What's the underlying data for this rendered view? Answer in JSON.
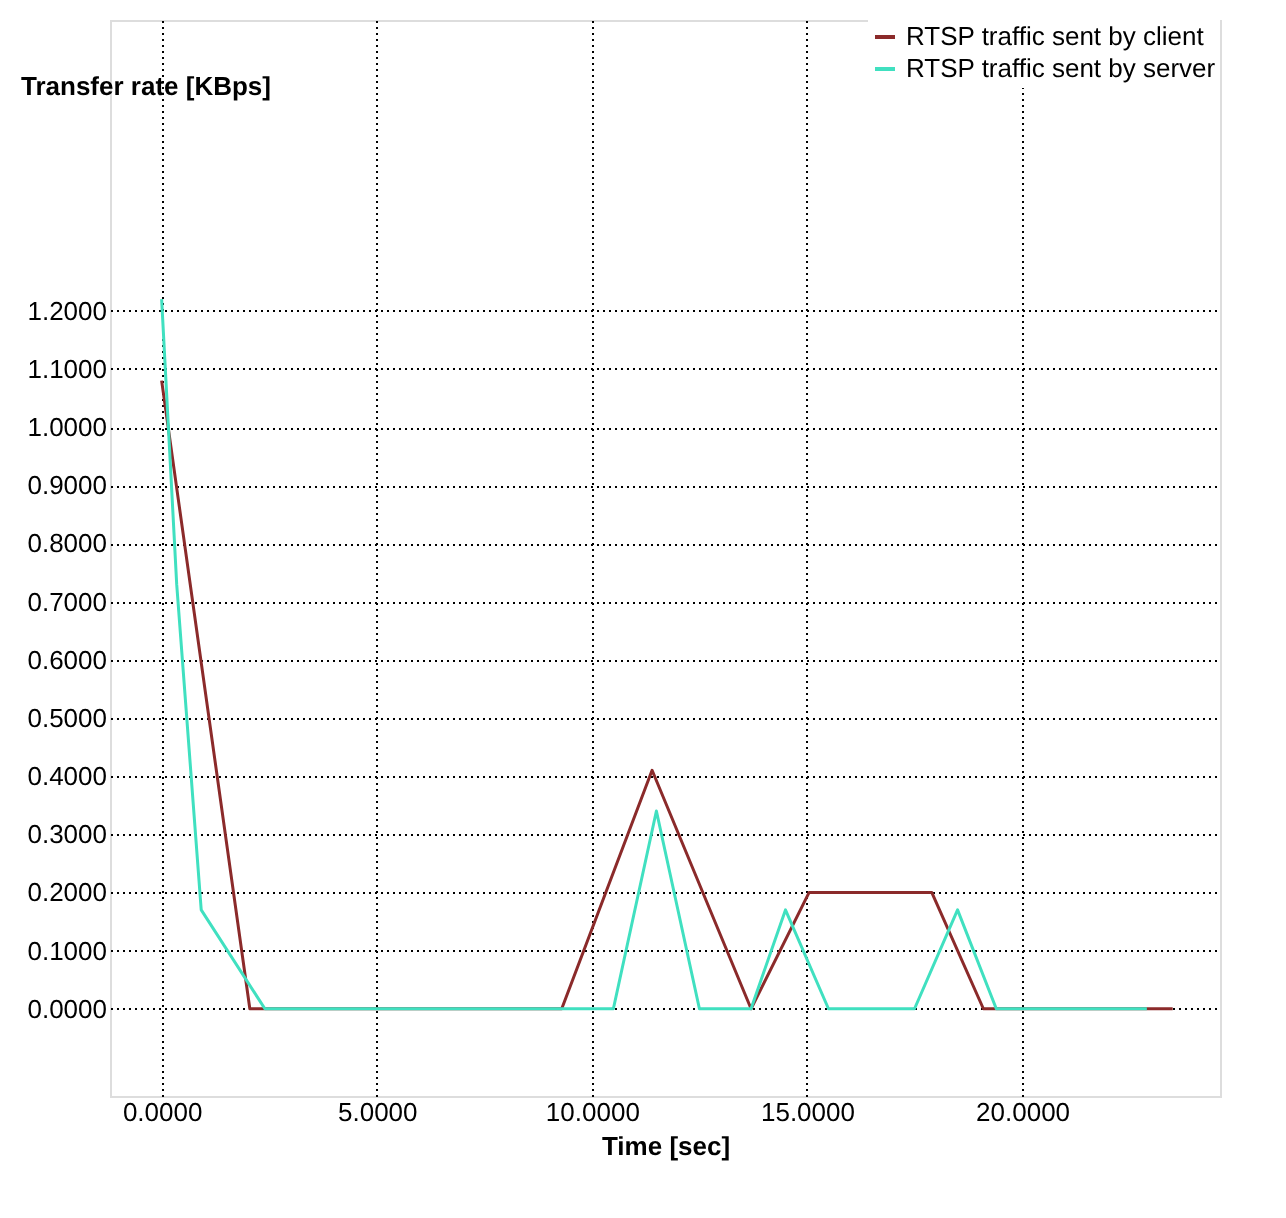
{
  "chart_data": {
    "type": "line",
    "ylabel": "Transfer rate [KBps]",
    "xlabel": "Time [sec]",
    "series": [
      {
        "name": "RTSP traffic sent by client",
        "color": "#8b2a2a",
        "x": [
          0,
          2.05,
          9.3,
          11.4,
          13.7,
          15.05,
          17.9,
          19.1,
          23.5
        ],
        "values": [
          1.08,
          0,
          0,
          0.41,
          0,
          0.2,
          0.2,
          0,
          0
        ]
      },
      {
        "name": "RTSP traffic sent by server",
        "color": "#40e0c0",
        "x": [
          0,
          0.35,
          0.92,
          2.4,
          10.5,
          11.5,
          12.5,
          13.7,
          14.5,
          15.5,
          17.5,
          18.5,
          19.4,
          22.9
        ],
        "values": [
          1.22,
          0.73,
          0.17,
          0,
          0,
          0.34,
          0,
          0,
          0.17,
          0,
          0,
          0.17,
          0,
          0
        ]
      }
    ],
    "xlim": [
      -1.2,
      24.6
    ],
    "ylim": [
      -0.15,
      1.7
    ],
    "xticks": [
      {
        "value": 0,
        "label": "0.0000"
      },
      {
        "value": 5,
        "label": "5.0000"
      },
      {
        "value": 10,
        "label": "10.0000"
      },
      {
        "value": 15,
        "label": "15.0000"
      },
      {
        "value": 20,
        "label": "20.0000"
      }
    ],
    "yticks": [
      {
        "value": 0,
        "label": "0.0000"
      },
      {
        "value": 0.1,
        "label": "0.1000"
      },
      {
        "value": 0.2,
        "label": "0.2000"
      },
      {
        "value": 0.3,
        "label": "0.3000"
      },
      {
        "value": 0.4,
        "label": "0.4000"
      },
      {
        "value": 0.5,
        "label": "0.5000"
      },
      {
        "value": 0.6,
        "label": "0.6000"
      },
      {
        "value": 0.7,
        "label": "0.7000"
      },
      {
        "value": 0.8,
        "label": "0.8000"
      },
      {
        "value": 0.9,
        "label": "0.9000"
      },
      {
        "value": 1.0,
        "label": "1.0000"
      },
      {
        "value": 1.1,
        "label": "1.1000"
      },
      {
        "value": 1.2,
        "label": "1.2000"
      }
    ],
    "grid": true,
    "legend": "top right",
    "marker": "none",
    "line_style": "solid"
  }
}
